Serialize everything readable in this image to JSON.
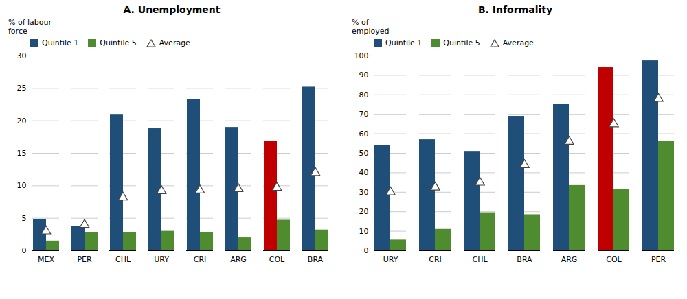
{
  "chart_data": [
    {
      "type": "bar",
      "title": "A. Unemployment",
      "ylabel": "% of labour\nforce",
      "categories": [
        "MEX",
        "PER",
        "CHL",
        "URY",
        "CRI",
        "ARG",
        "COL",
        "BRA"
      ],
      "series": [
        {
          "name": "Quintile 1",
          "type": "bar",
          "color": "#1F4E79",
          "colors": [
            "#1F4E79",
            "#1F4E79",
            "#1F4E79",
            "#1F4E79",
            "#1F4E79",
            "#1F4E79",
            "#C00000",
            "#1F4E79"
          ],
          "values": [
            4.8,
            3.8,
            21.0,
            18.8,
            23.3,
            19.0,
            16.8,
            25.2
          ]
        },
        {
          "name": "Quintile 5",
          "type": "bar",
          "color": "#4E8C2F",
          "values": [
            1.5,
            2.8,
            2.8,
            3.0,
            2.8,
            2.0,
            4.7,
            3.2
          ]
        },
        {
          "name": "Average",
          "type": "scatter",
          "marker": "triangle",
          "color": "#444444",
          "values": [
            3.0,
            4.0,
            8.2,
            9.2,
            9.3,
            9.5,
            9.7,
            12.0
          ]
        }
      ],
      "ylim": [
        0,
        30
      ],
      "yticks": [
        0,
        5,
        10,
        15,
        20,
        25,
        30
      ],
      "grid": true,
      "legend": "upper left"
    },
    {
      "type": "bar",
      "title": "B. Informality",
      "ylabel": "% of\nemployed",
      "categories": [
        "URY",
        "CRI",
        "CHL",
        "BRA",
        "ARG",
        "COL",
        "PER"
      ],
      "series": [
        {
          "name": "Quintile 1",
          "type": "bar",
          "color": "#1F4E79",
          "colors": [
            "#1F4E79",
            "#1F4E79",
            "#1F4E79",
            "#1F4E79",
            "#1F4E79",
            "#C00000",
            "#1F4E79"
          ],
          "values": [
            54.0,
            57.0,
            51.0,
            69.0,
            75.0,
            94.0,
            97.5
          ]
        },
        {
          "name": "Quintile 5",
          "type": "bar",
          "color": "#4E8C2F",
          "values": [
            5.5,
            11.0,
            19.5,
            18.5,
            33.5,
            31.5,
            56.0
          ]
        },
        {
          "name": "Average",
          "type": "scatter",
          "marker": "triangle",
          "color": "#444444",
          "values": [
            30.0,
            32.5,
            35.0,
            44.0,
            56.0,
            65.0,
            78.0
          ]
        }
      ],
      "ylim": [
        0,
        100
      ],
      "yticks": [
        0,
        10,
        20,
        30,
        40,
        50,
        60,
        70,
        80,
        90,
        100
      ],
      "grid": true,
      "legend": "upper left"
    }
  ]
}
